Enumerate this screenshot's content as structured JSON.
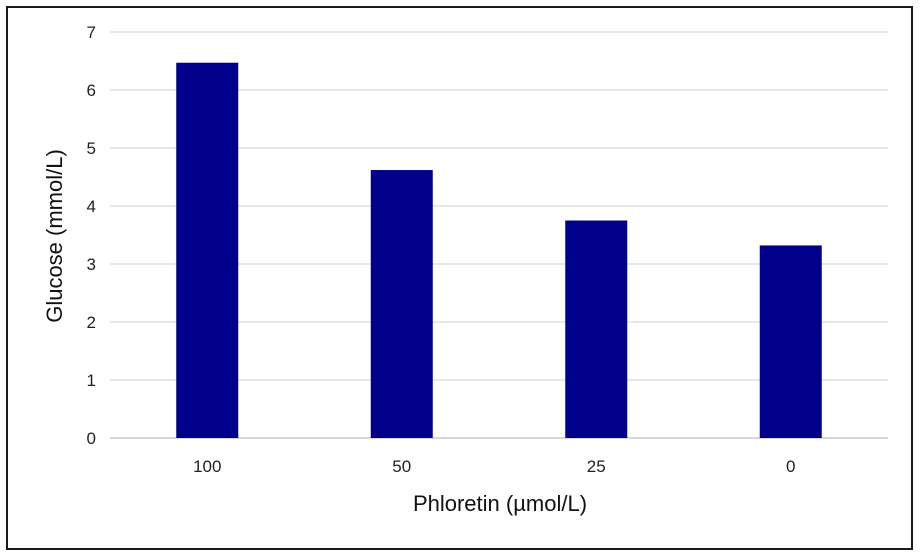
{
  "chart_data": {
    "type": "bar",
    "categories": [
      "100",
      "50",
      "25",
      "0"
    ],
    "values": [
      6.47,
      4.62,
      3.75,
      3.32
    ],
    "xlabel": "Phloretin (µmol/L)",
    "ylabel": "Glucose (mmol/L)",
    "ylim": [
      0,
      7
    ],
    "yticks": [
      "0",
      "1",
      "2",
      "3",
      "4",
      "5",
      "6",
      "7"
    ],
    "grid": true,
    "legend": "none",
    "bar_color": "#00008B"
  }
}
